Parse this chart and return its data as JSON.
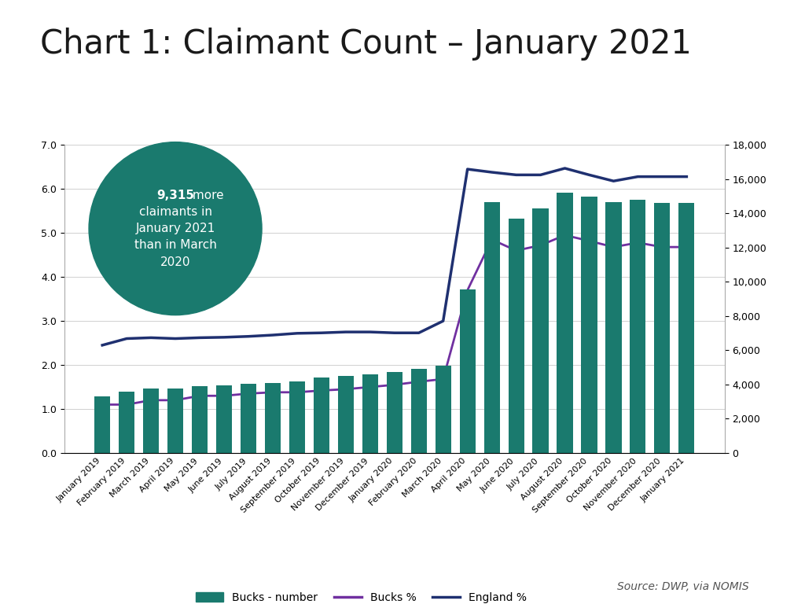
{
  "title": "Chart 1: Claimant Count – January 2021",
  "categories": [
    "January 2019",
    "February 2019",
    "March 2019",
    "April 2019",
    "May 2019",
    "June 2019",
    "July 2019",
    "August 2019",
    "September 2019",
    "October 2019",
    "November 2019",
    "December 2019",
    "January 2020",
    "February 2020",
    "March 2020",
    "April 2020",
    "May 2020",
    "June 2020",
    "July 2020",
    "August 2020",
    "September 2020",
    "October 2020",
    "November 2020",
    "December 2020",
    "January 2021"
  ],
  "bucks_number": [
    3300,
    3600,
    3750,
    3750,
    3900,
    3950,
    4050,
    4100,
    4200,
    4400,
    4500,
    4600,
    4750,
    4900,
    5100,
    9550,
    14650,
    13700,
    14300,
    15200,
    15000,
    14650,
    14800,
    14600,
    14600
  ],
  "bucks_pct": [
    1.1,
    1.1,
    1.2,
    1.2,
    1.3,
    1.3,
    1.35,
    1.38,
    1.38,
    1.42,
    1.45,
    1.5,
    1.55,
    1.62,
    1.68,
    3.7,
    4.85,
    4.6,
    4.72,
    4.95,
    4.82,
    4.68,
    4.78,
    4.68,
    4.68
  ],
  "england_pct": [
    2.45,
    2.6,
    2.62,
    2.6,
    2.62,
    2.63,
    2.65,
    2.68,
    2.72,
    2.73,
    2.75,
    2.75,
    2.73,
    2.73,
    3.0,
    6.45,
    6.38,
    6.32,
    6.32,
    6.47,
    6.32,
    6.18,
    6.28,
    6.28,
    6.28
  ],
  "bar_color": "#1a7a6e",
  "bucks_pct_color": "#7030a0",
  "england_pct_color": "#1f3070",
  "annotation_circle_color": "#1a7a6e",
  "annotation_bold": "9,315",
  "left_ylim": [
    0.0,
    7.0
  ],
  "right_ylim": [
    0,
    18000
  ],
  "left_yticks": [
    0.0,
    1.0,
    2.0,
    3.0,
    4.0,
    5.0,
    6.0,
    7.0
  ],
  "right_yticks": [
    0,
    2000,
    4000,
    6000,
    8000,
    10000,
    12000,
    14000,
    16000,
    18000
  ],
  "source_text": "Source: DWP, via NOMIS",
  "legend_labels": [
    "Bucks - number",
    "Bucks %",
    "England %"
  ],
  "background_color": "#ffffff",
  "grid_color": "#d0d0d0",
  "title_fontsize": 30,
  "axis_fontsize": 10,
  "tick_fontsize": 9
}
